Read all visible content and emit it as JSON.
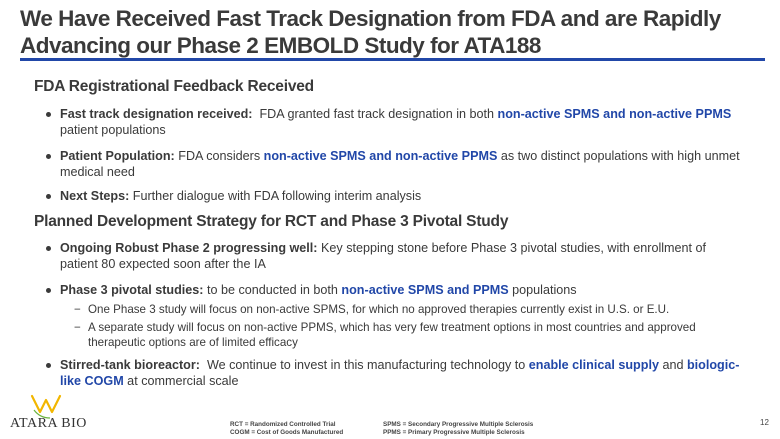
{
  "title": "We Have Received Fast Track Designation from FDA and are Rapidly Advancing our Phase 2 EMBOLD Study for ATA188",
  "colors": {
    "accent": "#2147a8",
    "text": "#3a3a3a",
    "logo_yellow": "#f2b600",
    "logo_green": "#6bb33f"
  },
  "sections": [
    {
      "heading": "FDA Registrational Feedback Received"
    },
    {
      "heading": "Planned Development Strategy for RCT and Phase 3 Pivotal Study"
    }
  ],
  "bullets": [
    [
      {
        "t": "Fast track designation received:",
        "s": "bold"
      },
      {
        "t": "  FDA granted fast track designation in both ",
        "s": ""
      },
      {
        "t": "non-active SPMS and non-active PPMS",
        "s": "blue"
      },
      {
        "t": " patient populations",
        "s": ""
      }
    ],
    [
      {
        "t": "Patient Population:",
        "s": "bold"
      },
      {
        "t": " FDA considers ",
        "s": ""
      },
      {
        "t": "non-active SPMS and non-active PPMS",
        "s": "blue"
      },
      {
        "t": " as two distinct populations with high unmet medical need",
        "s": ""
      }
    ],
    [
      {
        "t": "Next Steps:",
        "s": "bold"
      },
      {
        "t": " Further dialogue with FDA following interim analysis",
        "s": ""
      }
    ],
    [
      {
        "t": "Ongoing Robust Phase 2 progressing well:",
        "s": "bold"
      },
      {
        "t": " Key stepping stone before Phase 3 pivotal studies, with enrollment of patient 80 expected soon after the IA",
        "s": ""
      }
    ],
    [
      {
        "t": "Phase 3 pivotal studies:",
        "s": "bold"
      },
      {
        "t": " to be conducted in both ",
        "s": ""
      },
      {
        "t": "non-active SPMS and PPMS",
        "s": "blue"
      },
      {
        "t": " populations",
        "s": ""
      }
    ],
    [
      {
        "t": "Stirred-tank bioreactor:",
        "s": "bold"
      },
      {
        "t": "  We continue to invest in this manufacturing technology to ",
        "s": ""
      },
      {
        "t": "enable clinical supply",
        "s": "blue"
      },
      {
        "t": " and ",
        "s": ""
      },
      {
        "t": "biologic-like COGM",
        "s": "blue"
      },
      {
        "t": " at commercial scale",
        "s": ""
      }
    ]
  ],
  "subbullets": [
    "One Phase 3 study will focus on non-active SPMS, for which no approved therapies currently exist in U.S. or E.U.",
    "A separate study will focus on non-active PPMS, which has very few treatment options in most countries and approved therapeutic options are of limited efficacy"
  ],
  "footer": {
    "abbr_left": [
      "RCT = Randomized Controlled Trial",
      "COGM = Cost of Goods Manufactured"
    ],
    "abbr_right": [
      "SPMS = Secondary Progressive Multiple Sclerosis",
      "PPMS = Primary Progressive Multiple Sclerosis"
    ],
    "logo_text": "ATARA BIO",
    "page_number": "12"
  }
}
